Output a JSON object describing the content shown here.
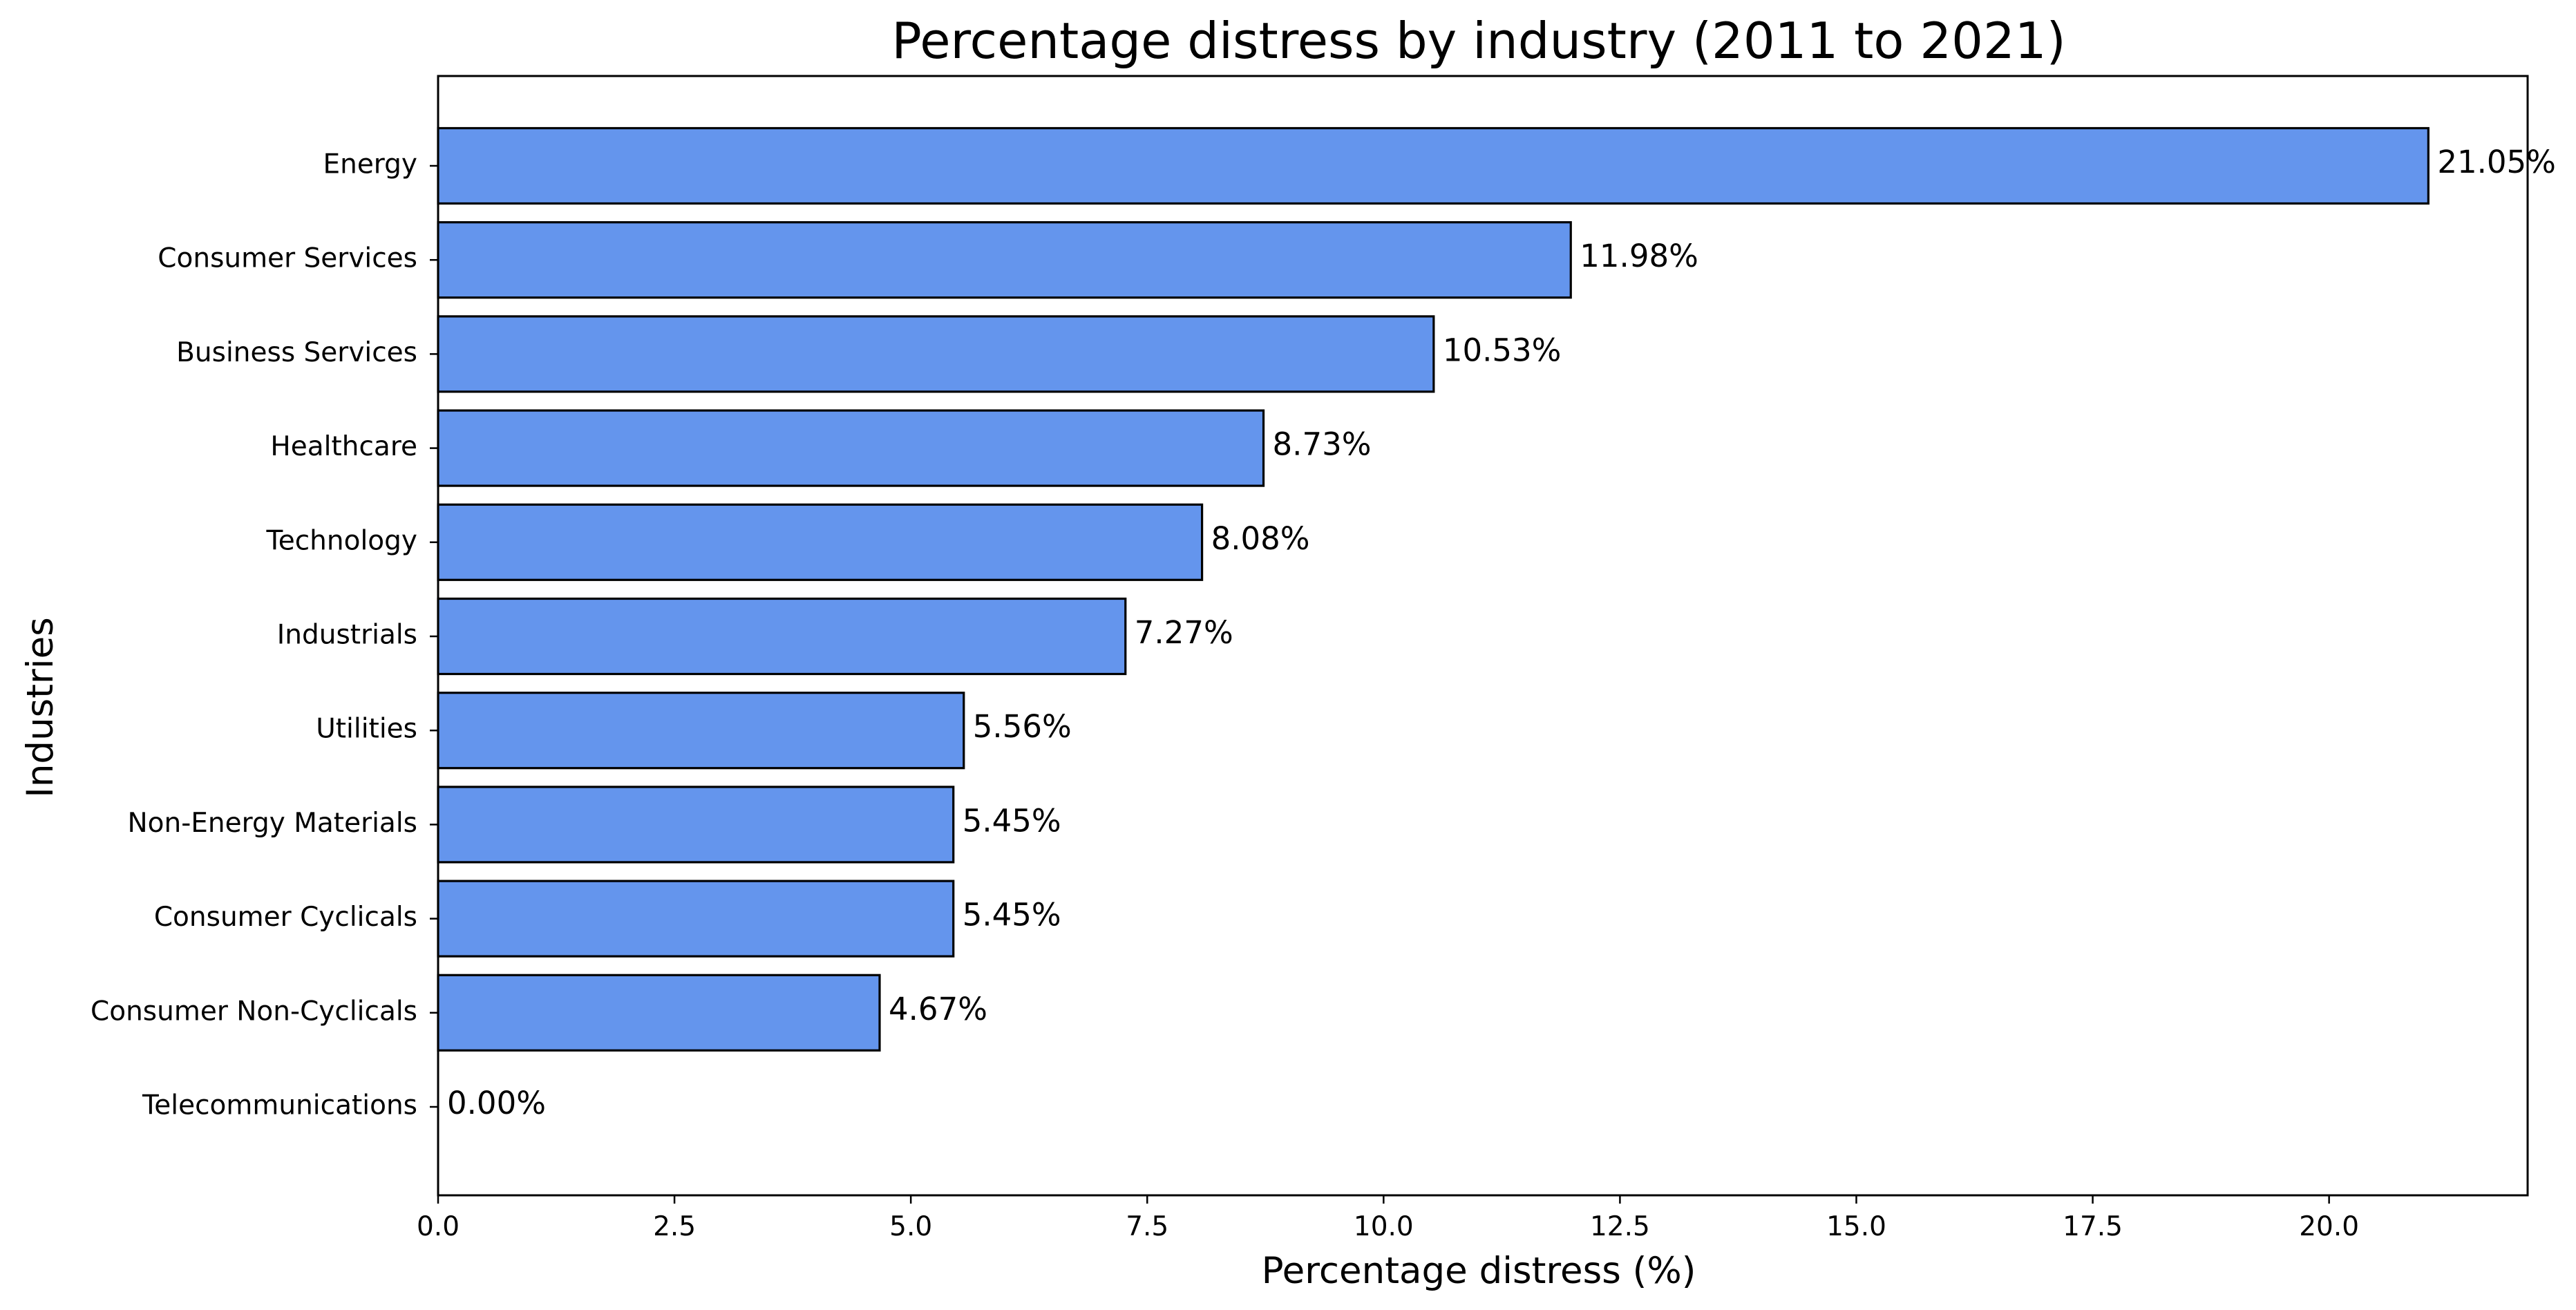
{
  "chart_data": {
    "type": "bar",
    "orientation": "horizontal",
    "title": "Percentage distress by industry (2011 to 2021)",
    "xlabel": "Percentage distress (%)",
    "ylabel": "Industries",
    "categories": [
      "Energy",
      "Consumer Services",
      "Business Services",
      "Healthcare",
      "Technology",
      "Industrials",
      "Utilities",
      "Non-Energy Materials",
      "Consumer Cyclicals",
      "Consumer Non-Cyclicals",
      "Telecommunications"
    ],
    "values": [
      21.05,
      11.98,
      10.53,
      8.73,
      8.08,
      7.27,
      5.56,
      5.45,
      5.45,
      4.67,
      0.0
    ],
    "data_labels": [
      "21.05%",
      "11.98%",
      "10.53%",
      "8.73%",
      "8.08%",
      "7.27%",
      "5.56%",
      "5.45%",
      "5.45%",
      "4.67%",
      "0.00%"
    ],
    "xlim": [
      0,
      22.1
    ],
    "x_ticks": [
      0.0,
      2.5,
      5.0,
      7.5,
      10.0,
      12.5,
      15.0,
      17.5,
      20.0
    ],
    "x_tick_labels": [
      "0.0",
      "2.5",
      "5.0",
      "7.5",
      "10.0",
      "12.5",
      "15.0",
      "17.5",
      "20.0"
    ],
    "grid": false,
    "legend": "none",
    "bar_color": "#6495ED",
    "bar_edge_color": "#000000"
  }
}
